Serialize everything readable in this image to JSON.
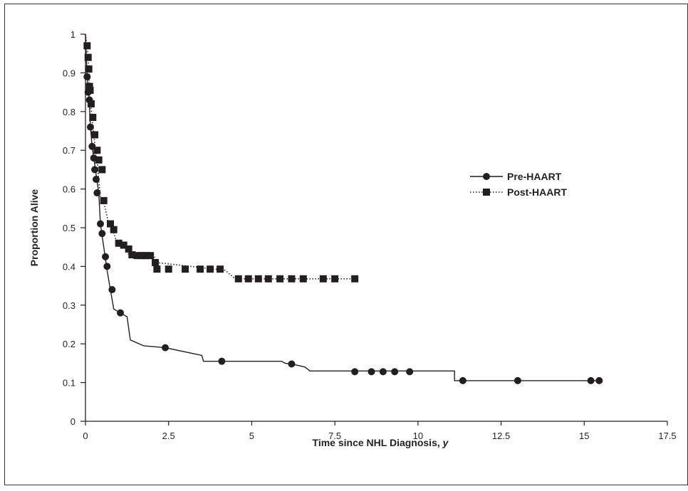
{
  "chart_data": {
    "type": "line",
    "title": "",
    "xlabel": "Time since NHL Diagnosis, ",
    "xlabel_unit": "y",
    "ylabel": "Proportion Alive",
    "xlim": [
      0,
      17.5
    ],
    "ylim": [
      0,
      1
    ],
    "x_ticks": [
      "0",
      "2.5",
      "5",
      "7.5",
      "10",
      "12.5",
      "15",
      "17.5"
    ],
    "y_ticks": [
      "0",
      "0.1",
      "0.2",
      "0.3",
      "0.4",
      "0.5",
      "0.6",
      "0.7",
      "0.8",
      "0.9",
      "1"
    ],
    "x_tick_values": [
      0,
      2.5,
      5,
      7.5,
      10,
      12.5,
      15,
      17.5
    ],
    "y_tick_values": [
      0,
      0.1,
      0.2,
      0.3,
      0.4,
      0.5,
      0.6,
      0.7,
      0.8,
      0.9,
      1
    ],
    "grid": false,
    "legend_position": "right",
    "series": [
      {
        "name": "Pre-HAART",
        "line_style": "solid",
        "marker": "circle",
        "color": "#231f20",
        "curve": [
          [
            0,
            1
          ],
          [
            0.05,
            0.89
          ],
          [
            0.1,
            0.85
          ],
          [
            0.15,
            0.76
          ],
          [
            0.2,
            0.71
          ],
          [
            0.25,
            0.68
          ],
          [
            0.3,
            0.65
          ],
          [
            0.35,
            0.62
          ],
          [
            0.4,
            0.59
          ],
          [
            0.45,
            0.51
          ],
          [
            0.5,
            0.48
          ],
          [
            0.55,
            0.45
          ],
          [
            0.6,
            0.42
          ],
          [
            0.65,
            0.39
          ],
          [
            0.75,
            0.34
          ],
          [
            0.85,
            0.29
          ],
          [
            1.05,
            0.28
          ],
          [
            1.25,
            0.27
          ],
          [
            1.35,
            0.21
          ],
          [
            1.75,
            0.195
          ],
          [
            2.4,
            0.19
          ],
          [
            3.5,
            0.17
          ],
          [
            3.55,
            0.155
          ],
          [
            4.1,
            0.155
          ],
          [
            5.9,
            0.155
          ],
          [
            6.0,
            0.15
          ],
          [
            6.2,
            0.148
          ],
          [
            6.6,
            0.14
          ],
          [
            6.75,
            0.13
          ],
          [
            10.2,
            0.13
          ],
          [
            11.1,
            0.13
          ],
          [
            11.1,
            0.105
          ],
          [
            15.5,
            0.105
          ]
        ],
        "markers": [
          [
            0.05,
            0.89
          ],
          [
            0.08,
            0.85
          ],
          [
            0.12,
            0.83
          ],
          [
            0.15,
            0.76
          ],
          [
            0.2,
            0.71
          ],
          [
            0.25,
            0.68
          ],
          [
            0.28,
            0.65
          ],
          [
            0.32,
            0.625
          ],
          [
            0.35,
            0.59
          ],
          [
            0.45,
            0.51
          ],
          [
            0.5,
            0.485
          ],
          [
            0.6,
            0.425
          ],
          [
            0.65,
            0.4
          ],
          [
            0.8,
            0.34
          ],
          [
            1.05,
            0.28
          ],
          [
            2.4,
            0.19
          ],
          [
            4.1,
            0.155
          ],
          [
            6.2,
            0.148
          ],
          [
            8.1,
            0.128
          ],
          [
            8.6,
            0.128
          ],
          [
            8.95,
            0.128
          ],
          [
            9.3,
            0.128
          ],
          [
            9.75,
            0.128
          ],
          [
            11.35,
            0.105
          ],
          [
            13.0,
            0.105
          ],
          [
            15.2,
            0.105
          ],
          [
            15.45,
            0.105
          ]
        ]
      },
      {
        "name": "Post-HAART",
        "line_style": "dotted",
        "marker": "square",
        "color": "#231f20",
        "curve": [
          [
            0,
            1
          ],
          [
            0.05,
            0.97
          ],
          [
            0.08,
            0.94
          ],
          [
            0.1,
            0.91
          ],
          [
            0.12,
            0.865
          ],
          [
            0.15,
            0.82
          ],
          [
            0.2,
            0.785
          ],
          [
            0.25,
            0.74
          ],
          [
            0.3,
            0.7
          ],
          [
            0.35,
            0.675
          ],
          [
            0.4,
            0.62
          ],
          [
            0.45,
            0.58
          ],
          [
            0.55,
            0.565
          ],
          [
            0.7,
            0.51
          ],
          [
            0.8,
            0.5
          ],
          [
            0.95,
            0.46
          ],
          [
            1.2,
            0.455
          ],
          [
            1.3,
            0.43
          ],
          [
            2.05,
            0.43
          ],
          [
            2.15,
            0.41
          ],
          [
            4.2,
            0.39
          ],
          [
            4.5,
            0.368
          ],
          [
            8.1,
            0.368
          ]
        ],
        "markers": [
          [
            0.05,
            0.97
          ],
          [
            0.08,
            0.94
          ],
          [
            0.1,
            0.91
          ],
          [
            0.12,
            0.865
          ],
          [
            0.14,
            0.855
          ],
          [
            0.17,
            0.82
          ],
          [
            0.22,
            0.785
          ],
          [
            0.28,
            0.74
          ],
          [
            0.35,
            0.7
          ],
          [
            0.4,
            0.675
          ],
          [
            0.5,
            0.65
          ],
          [
            0.55,
            0.57
          ],
          [
            0.75,
            0.51
          ],
          [
            0.85,
            0.495
          ],
          [
            1.0,
            0.46
          ],
          [
            1.15,
            0.455
          ],
          [
            1.3,
            0.445
          ],
          [
            1.4,
            0.43
          ],
          [
            1.55,
            0.428
          ],
          [
            1.7,
            0.428
          ],
          [
            1.8,
            0.428
          ],
          [
            1.95,
            0.428
          ],
          [
            2.1,
            0.41
          ],
          [
            2.15,
            0.393
          ],
          [
            2.5,
            0.393
          ],
          [
            3.0,
            0.393
          ],
          [
            3.45,
            0.393
          ],
          [
            3.75,
            0.393
          ],
          [
            4.05,
            0.393
          ],
          [
            4.6,
            0.368
          ],
          [
            4.9,
            0.368
          ],
          [
            5.2,
            0.368
          ],
          [
            5.5,
            0.368
          ],
          [
            5.85,
            0.368
          ],
          [
            6.2,
            0.368
          ],
          [
            6.55,
            0.368
          ],
          [
            7.15,
            0.368
          ],
          [
            7.5,
            0.368
          ],
          [
            8.1,
            0.368
          ]
        ]
      }
    ]
  }
}
